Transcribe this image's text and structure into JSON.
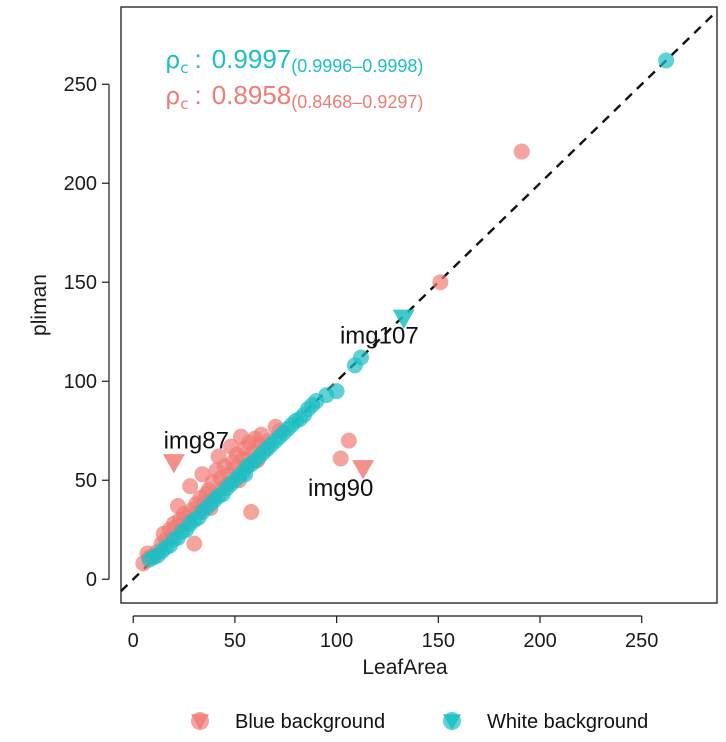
{
  "chart_data": {
    "type": "scatter",
    "xlabel": "LeafArea",
    "ylabel": "pliman",
    "xlim": [
      -6,
      287
    ],
    "ylim": [
      -12,
      289
    ],
    "x_ticks": [
      0,
      50,
      100,
      150,
      200,
      250
    ],
    "y_ticks": [
      0,
      50,
      100,
      150,
      200,
      250
    ],
    "reference_line": "y = x (dashed)",
    "colors": {
      "blue_background": "#F07C76",
      "white_background": "#1CBFC4"
    },
    "stats": [
      {
        "symbol": "ρ",
        "subscript": "c",
        "sep": ":",
        "value": "0.9997",
        "ci": "(0.9996–0.9998)",
        "color": "#1CBFC4"
      },
      {
        "symbol": "ρ",
        "subscript": "c",
        "sep": ":",
        "value": "0.8958",
        "ci": "(0.8468–0.9297)",
        "color": "#F07C76"
      }
    ],
    "annotations": [
      {
        "text": "img107",
        "x": 121,
        "y": 119
      },
      {
        "text": "img87",
        "x": 31,
        "y": 66
      },
      {
        "text": "img90",
        "x": 102,
        "y": 42
      }
    ],
    "legend": {
      "position": "bottom",
      "items": [
        {
          "label": "Blue background",
          "color": "#F07C76"
        },
        {
          "label": "White background",
          "color": "#1CBFC4"
        }
      ]
    },
    "series": [
      {
        "name": "Blue background",
        "color": "#F07C76",
        "points": [
          [
            5,
            8
          ],
          [
            7,
            13
          ],
          [
            8,
            11
          ],
          [
            10,
            12
          ],
          [
            12,
            14
          ],
          [
            14,
            18
          ],
          [
            15,
            23
          ],
          [
            16,
            20
          ],
          [
            18,
            25
          ],
          [
            19,
            22
          ],
          [
            20,
            28
          ],
          [
            21,
            26
          ],
          [
            22,
            37
          ],
          [
            23,
            30
          ],
          [
            24,
            27
          ],
          [
            25,
            33
          ],
          [
            26,
            31
          ],
          [
            27,
            29
          ],
          [
            28,
            47
          ],
          [
            29,
            35
          ],
          [
            30,
            18
          ],
          [
            31,
            38
          ],
          [
            32,
            34
          ],
          [
            33,
            41
          ],
          [
            34,
            53
          ],
          [
            35,
            39
          ],
          [
            36,
            43
          ],
          [
            37,
            45
          ],
          [
            38,
            36
          ],
          [
            39,
            49
          ],
          [
            40,
            42
          ],
          [
            41,
            55
          ],
          [
            42,
            62
          ],
          [
            43,
            51
          ],
          [
            44,
            46
          ],
          [
            45,
            57
          ],
          [
            46,
            48
          ],
          [
            47,
            53
          ],
          [
            48,
            67
          ],
          [
            49,
            59
          ],
          [
            50,
            56
          ],
          [
            51,
            63
          ],
          [
            52,
            50
          ],
          [
            53,
            72
          ],
          [
            54,
            61
          ],
          [
            55,
            66
          ],
          [
            56,
            58
          ],
          [
            57,
            69
          ],
          [
            58,
            34
          ],
          [
            59,
            64
          ],
          [
            60,
            71
          ],
          [
            61,
            60
          ],
          [
            62,
            68
          ],
          [
            63,
            73
          ],
          [
            65,
            66
          ],
          [
            67,
            70
          ],
          [
            70,
            77
          ],
          [
            72,
            75
          ],
          [
            102,
            61
          ],
          [
            106,
            70
          ],
          [
            151,
            150
          ],
          [
            191,
            216
          ]
        ],
        "triangles": [
          [
            20,
            59
          ],
          [
            113,
            56
          ]
        ]
      },
      {
        "name": "White background",
        "color": "#1CBFC4",
        "points": [
          [
            8,
            10
          ],
          [
            10,
            11
          ],
          [
            12,
            12
          ],
          [
            14,
            14
          ],
          [
            16,
            16
          ],
          [
            18,
            17
          ],
          [
            20,
            20
          ],
          [
            22,
            21
          ],
          [
            24,
            24
          ],
          [
            26,
            25
          ],
          [
            28,
            28
          ],
          [
            30,
            30
          ],
          [
            32,
            31
          ],
          [
            34,
            34
          ],
          [
            36,
            36
          ],
          [
            38,
            38
          ],
          [
            40,
            40
          ],
          [
            42,
            42
          ],
          [
            44,
            43
          ],
          [
            46,
            46
          ],
          [
            48,
            48
          ],
          [
            50,
            50
          ],
          [
            52,
            52
          ],
          [
            54,
            54
          ],
          [
            55,
            53
          ],
          [
            56,
            57
          ],
          [
            58,
            58
          ],
          [
            60,
            60
          ],
          [
            62,
            62
          ],
          [
            64,
            64
          ],
          [
            66,
            66
          ],
          [
            68,
            68
          ],
          [
            70,
            70
          ],
          [
            72,
            72
          ],
          [
            74,
            74
          ],
          [
            76,
            76
          ],
          [
            78,
            78
          ],
          [
            80,
            80
          ],
          [
            82,
            81
          ],
          [
            84,
            83
          ],
          [
            86,
            86
          ],
          [
            88,
            88
          ],
          [
            90,
            90
          ],
          [
            95,
            93
          ],
          [
            100,
            95
          ],
          [
            109,
            108
          ],
          [
            112,
            112
          ],
          [
            262,
            262
          ]
        ],
        "triangles": [
          [
            133,
            132
          ]
        ]
      }
    ]
  }
}
